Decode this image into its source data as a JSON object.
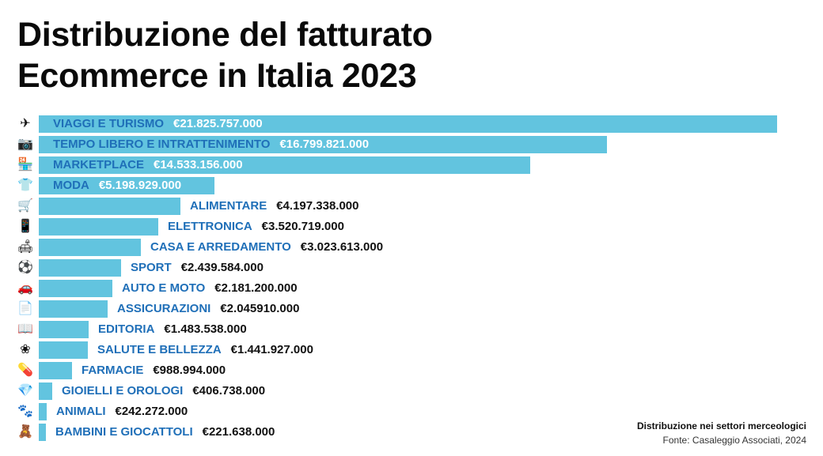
{
  "title_line1": "Distribuzione del fatturato",
  "title_line2": "Ecommerce in Italia 2023",
  "note_title": "Distribuzione nei settori merceologici",
  "note_source": "Fonte: Casaleggio Associati, 2024",
  "colors": {
    "bar": "#62c4df",
    "category_label": "#1f6fb8",
    "value_inside": "#ffffff",
    "value_outside": "#111111"
  },
  "rows": [
    {
      "icon": "airplane-icon",
      "glyph": "✈",
      "label": "VIAGGI E TURISMO",
      "value_text": "€21.825.757.000"
    },
    {
      "icon": "camera-icon",
      "glyph": "📷",
      "label": "TEMPO LIBERO E INTRATTENIMENTO",
      "value_text": "€16.799.821.000"
    },
    {
      "icon": "store-icon",
      "glyph": "🏪",
      "label": "MARKETPLACE",
      "value_text": "€14.533.156.000"
    },
    {
      "icon": "shirt-icon",
      "glyph": "👕",
      "label": "MODA",
      "value_text": "€5.198.929.000"
    },
    {
      "icon": "shopping-cart-icon",
      "glyph": "🛒",
      "label": "ALIMENTARE",
      "value_text": "€4.197.338.000"
    },
    {
      "icon": "smartphone-icon",
      "glyph": "📱",
      "label": "ELETTRONICA",
      "value_text": "€3.520.719.000"
    },
    {
      "icon": "sofa-icon",
      "glyph": "🛋",
      "label": "CASA E ARREDAMENTO",
      "value_text": "€3.023.613.000"
    },
    {
      "icon": "soccer-ball-icon",
      "glyph": "⚽",
      "label": "SPORT",
      "value_text": "€2.439.584.000"
    },
    {
      "icon": "car-icon",
      "glyph": "🚗",
      "label": "AUTO E MOTO",
      "value_text": "€2.181.200.000"
    },
    {
      "icon": "document-shield-icon",
      "glyph": "📄",
      "label": "ASSICURAZIONI",
      "value_text": "€2.045910.000"
    },
    {
      "icon": "open-book-icon",
      "glyph": "📖",
      "label": "EDITORIA",
      "value_text": "€1.483.538.000"
    },
    {
      "icon": "lotus-icon",
      "glyph": "❀",
      "label": "SALUTE E BELLEZZA",
      "value_text": "€1.441.927.000"
    },
    {
      "icon": "pill-bottle-icon",
      "glyph": "💊",
      "label": "FARMACIE",
      "value_text": "€988.994.000"
    },
    {
      "icon": "diamond-icon",
      "glyph": "💎",
      "label": "GIOIELLI E OROLOGI",
      "value_text": "€406.738.000"
    },
    {
      "icon": "pet-icon",
      "glyph": "🐾",
      "label": "ANIMALI",
      "value_text": "€242.272.000"
    },
    {
      "icon": "teddy-bear-icon",
      "glyph": "🧸",
      "label": "BAMBINI E GIOCATTOLI",
      "value_text": "€221.638.000"
    }
  ],
  "chart_data": {
    "type": "bar",
    "orientation": "horizontal",
    "title": "Distribuzione del fatturato Ecommerce in Italia 2023",
    "subtitle": "Distribuzione nei settori merceologici",
    "source": "Fonte: Casaleggio Associati, 2024",
    "xlabel": "",
    "ylabel": "",
    "grid": false,
    "legend": null,
    "categories": [
      "VIAGGI E TURISMO",
      "TEMPO LIBERO E INTRATTENIMENTO",
      "MARKETPLACE",
      "MODA",
      "ALIMENTARE",
      "ELETTRONICA",
      "CASA E ARREDAMENTO",
      "SPORT",
      "AUTO E MOTO",
      "ASSICURAZIONI",
      "EDITORIA",
      "SALUTE E BELLEZZA",
      "FARMACIE",
      "GIOIELLI E OROLOGI",
      "ANIMALI",
      "BAMBINI E GIOCATTOLI"
    ],
    "values": [
      21825757000,
      16799821000,
      14533156000,
      5198929000,
      4197338000,
      3520719000,
      3023613000,
      2439584000,
      2181200000,
      2045910000,
      1483538000,
      1441927000,
      988994000,
      406738000,
      242272000,
      221638000
    ],
    "unit": "EUR"
  }
}
